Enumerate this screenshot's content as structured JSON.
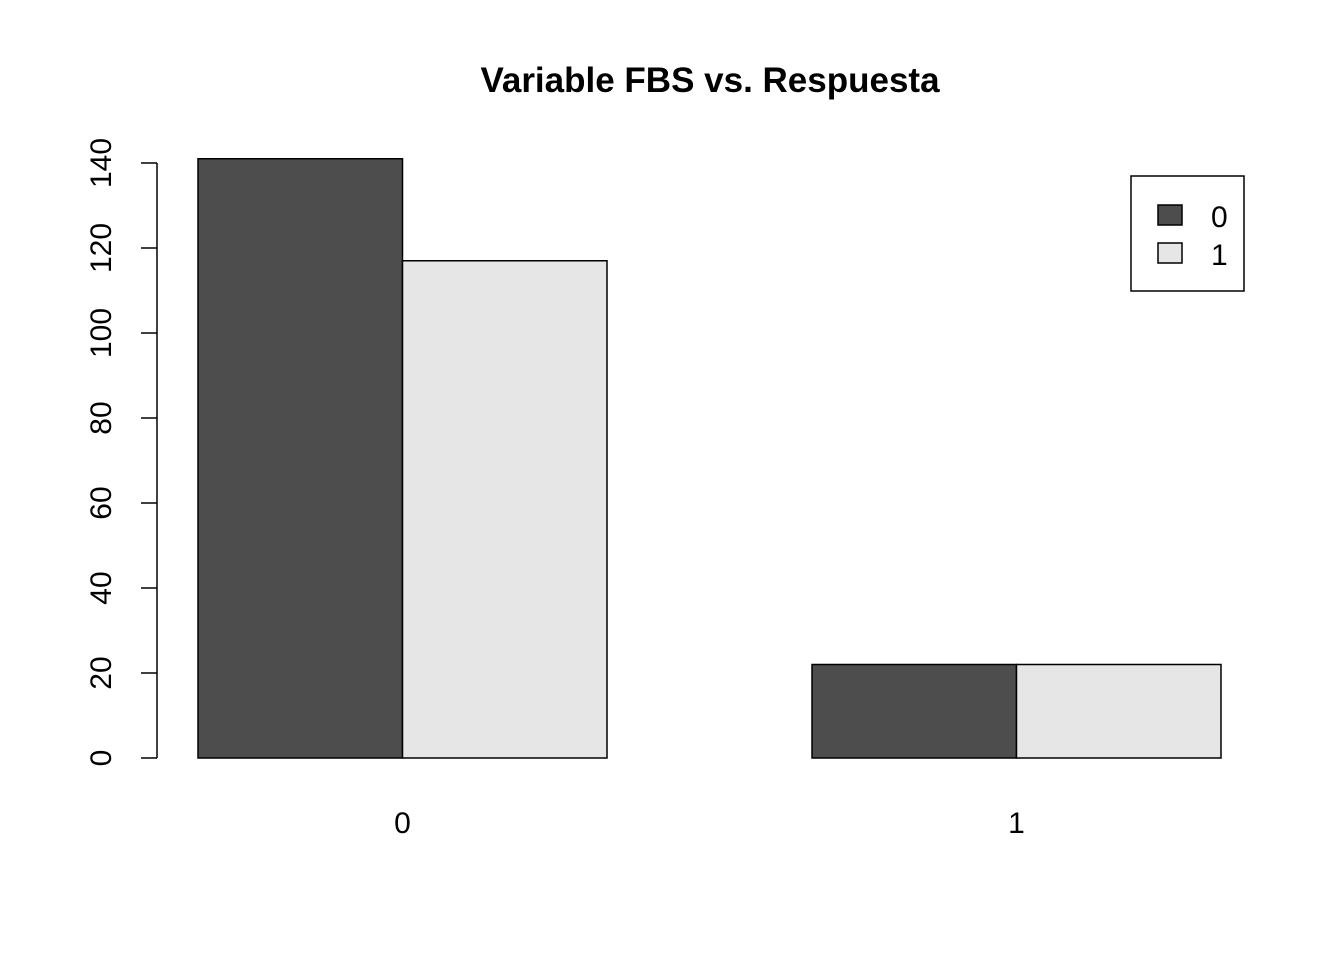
{
  "chart_data": {
    "type": "bar",
    "title": "Variable FBS vs. Respuesta",
    "xlabel": "",
    "ylabel": "",
    "categories": [
      "0",
      "1"
    ],
    "series": [
      {
        "name": "0",
        "values": [
          141,
          22
        ],
        "color": "#4d4d4d"
      },
      {
        "name": "1",
        "values": [
          117,
          22
        ],
        "color": "#e6e6e6"
      }
    ],
    "yticks": [
      0,
      20,
      40,
      60,
      80,
      100,
      120,
      140
    ],
    "ylim": [
      0,
      141
    ],
    "grid": false,
    "legend": {
      "placement": "top-right",
      "entries": [
        "0",
        "1"
      ]
    }
  }
}
